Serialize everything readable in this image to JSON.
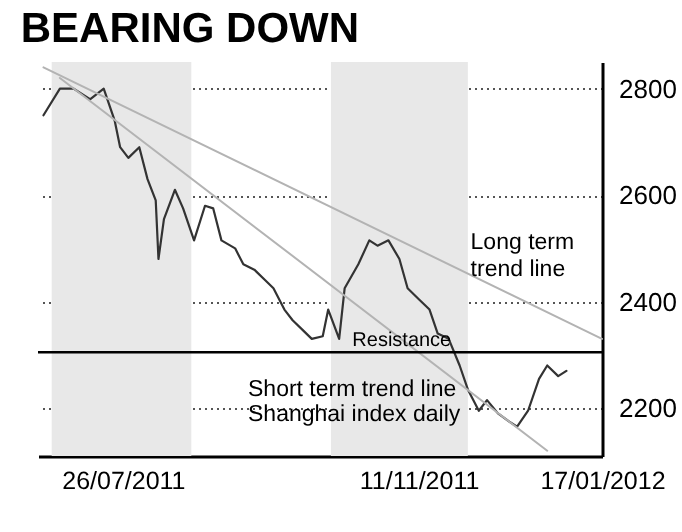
{
  "chart_data": {
    "type": "line",
    "title": "BEARING DOWN",
    "xlim": [
      "2011-06-25",
      "2012-01-17"
    ],
    "ylim": [
      2110,
      2850
    ],
    "xticks": [
      {
        "value": "2011-07-26",
        "label": "26/07/2011"
      },
      {
        "value": "2011-11-11",
        "label": "11/11/2011"
      },
      {
        "value": "2012-01-17",
        "label": "17/01/2012"
      }
    ],
    "yticks": [
      2200,
      2400,
      2600,
      2800
    ],
    "grid": "y",
    "marker": "none",
    "line_style": "solid",
    "series": [
      {
        "color": "#333333",
        "x": [
          "2011-06-27",
          "2011-07-03",
          "2011-07-08",
          "2011-07-14",
          "2011-07-19",
          "2011-07-23",
          "2011-07-25",
          "2011-07-28",
          "2011-08-01",
          "2011-08-04",
          "2011-08-07",
          "2011-08-08",
          "2011-08-10",
          "2011-08-14",
          "2011-08-17",
          "2011-08-21",
          "2011-08-25",
          "2011-08-28",
          "2011-08-31",
          "2011-09-05",
          "2011-09-08",
          "2011-09-12",
          "2011-09-16",
          "2011-09-19",
          "2011-09-23",
          "2011-09-26",
          "2011-09-30",
          "2011-10-03",
          "2011-10-07",
          "2011-10-09",
          "2011-10-13",
          "2011-10-15",
          "2011-10-20",
          "2011-10-24",
          "2011-10-27",
          "2011-10-31",
          "2011-11-04",
          "2011-11-07",
          "2011-11-11",
          "2011-11-15",
          "2011-11-18",
          "2011-11-22",
          "2011-11-26",
          "2011-11-29",
          "2011-12-03",
          "2011-12-06",
          "2011-12-10",
          "2011-12-14",
          "2011-12-17",
          "2011-12-21",
          "2011-12-25",
          "2011-12-28",
          "2012-01-01",
          "2012-01-04"
        ],
        "values": [
          2750,
          2800,
          2800,
          2780,
          2800,
          2740,
          2690,
          2670,
          2690,
          2630,
          2590,
          2480,
          2555,
          2610,
          2575,
          2515,
          2580,
          2575,
          2515,
          2500,
          2470,
          2460,
          2440,
          2425,
          2385,
          2365,
          2345,
          2330,
          2335,
          2385,
          2330,
          2425,
          2470,
          2515,
          2505,
          2515,
          2480,
          2425,
          2405,
          2385,
          2340,
          2330,
          2280,
          2235,
          2195,
          2215,
          2190,
          2175,
          2165,
          2195,
          2255,
          2280,
          2260,
          2270
        ]
      },
      {
        "color": "#b3b3b3",
        "x": [
          "2011-06-27",
          "2012-01-17"
        ],
        "values": [
          2840,
          2330
        ]
      },
      {
        "color": "#b3b3b3",
        "x": [
          "2011-07-03",
          "2011-12-28"
        ],
        "values": [
          2820,
          2120
        ]
      }
    ],
    "ref_lines": [
      {
        "axis": "y",
        "value": 2305,
        "label": "Resistance",
        "color": "#000000"
      }
    ],
    "bands": [
      {
        "axis": "x",
        "from": "2011-06-30",
        "to": "2011-08-20",
        "color": "#e8e8e8"
      },
      {
        "axis": "x",
        "from": "2011-10-10",
        "to": "2011-11-29",
        "color": "#e8e8e8"
      }
    ],
    "annotations": [
      {
        "text": "Long term\ntrend line",
        "x": "2011-11-30",
        "y": 2510
      },
      "Short term trend line",
      "Shanghai index daily"
    ]
  }
}
